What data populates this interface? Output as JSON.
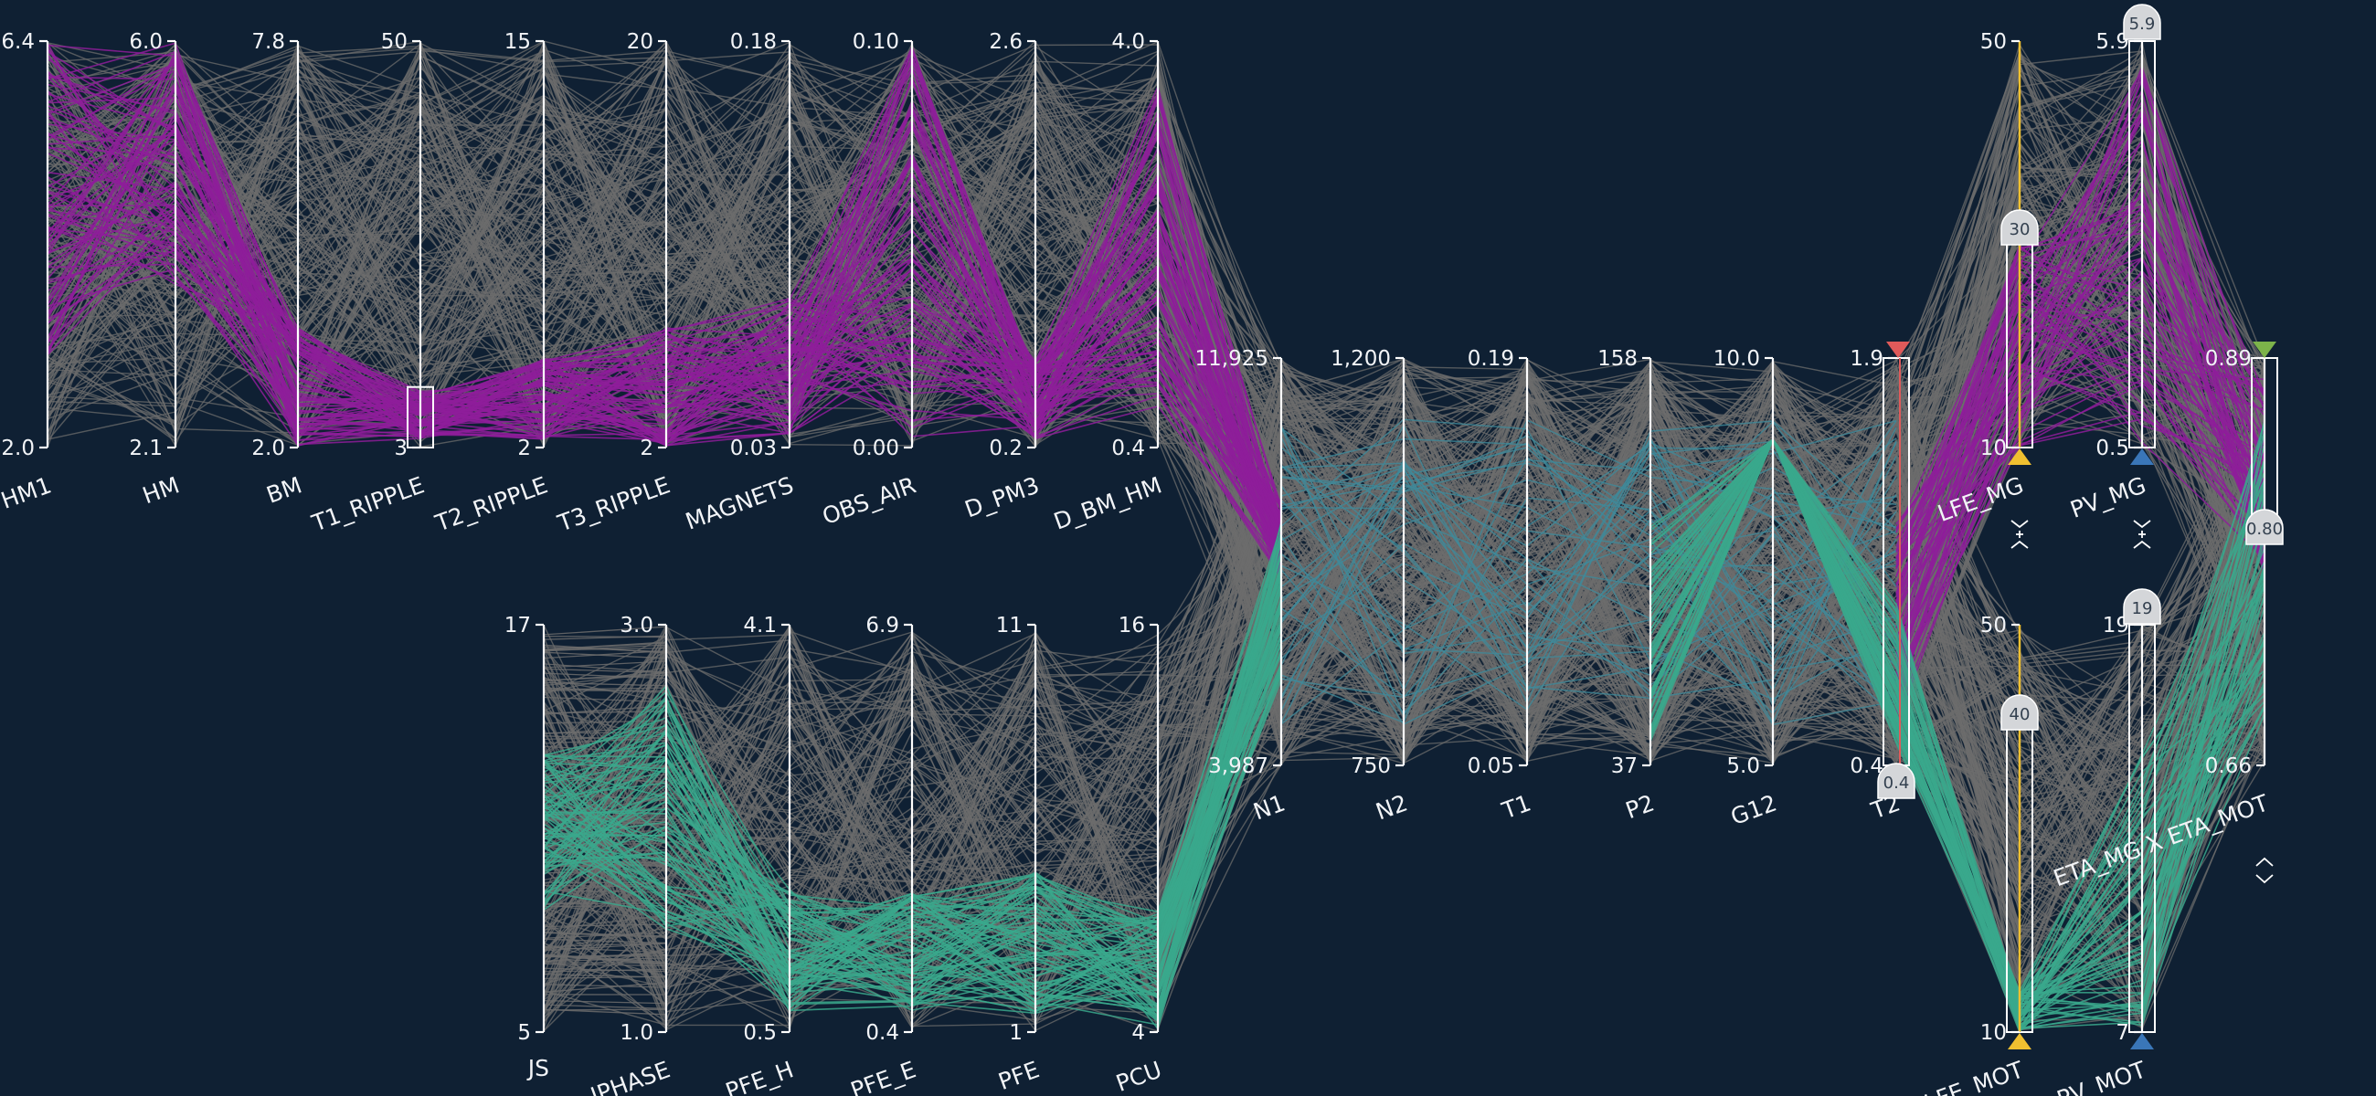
{
  "colors": {
    "background": "#0f2033",
    "context_line": "#6c6c6c",
    "magenta_line": "#8e1d9a",
    "teal_line": "#3aa88c",
    "steel_line": "#3f8a9a",
    "handle_fill": "#d4d6d9",
    "arrow_yellow": "#f0c030",
    "arrow_blue": "#3a76b8",
    "arrow_red": "#e05a5a",
    "arrow_green": "#7cb34a",
    "brush_red": "#e05a5a",
    "brush_olive": "#9fae2e"
  },
  "chart_data": {
    "type": "parallel_coordinates",
    "axes": [
      {
        "id": "hm1",
        "name": "HM1",
        "min": "2.0",
        "max": "6.4"
      },
      {
        "id": "hm",
        "name": "HM",
        "min": "2.1",
        "max": "6.0"
      },
      {
        "id": "bm",
        "name": "BM",
        "min": "2.0",
        "max": "7.8"
      },
      {
        "id": "t1_ripple",
        "name": "T1_RIPPLE",
        "min": "3",
        "max": "50"
      },
      {
        "id": "t2_ripple",
        "name": "T2_RIPPLE",
        "min": "2",
        "max": "15"
      },
      {
        "id": "t3_ripple",
        "name": "T3_RIPPLE",
        "min": "2",
        "max": "20"
      },
      {
        "id": "magnets",
        "name": "MAGNETS",
        "min": "0.03",
        "max": "0.18"
      },
      {
        "id": "obs_air",
        "name": "OBS_AIR",
        "min": "0.00",
        "max": "0.10"
      },
      {
        "id": "d_pm3",
        "name": "D_PM3",
        "min": "0.2",
        "max": "2.6"
      },
      {
        "id": "d_bm_hm",
        "name": "D_BM_HM",
        "min": "0.4",
        "max": "4.0"
      },
      {
        "id": "js",
        "name": "JS",
        "min": "5",
        "max": "17"
      },
      {
        "id": "iphase",
        "name": "IPHASE",
        "min": "1.0",
        "max": "3.0"
      },
      {
        "id": "pfe_h",
        "name": "PFE_H",
        "min": "0.5",
        "max": "4.1"
      },
      {
        "id": "pfe_e",
        "name": "PFE_E",
        "min": "0.4",
        "max": "6.9"
      },
      {
        "id": "pfe",
        "name": "PFE",
        "min": "1",
        "max": "11"
      },
      {
        "id": "pcu",
        "name": "PCU",
        "min": "4",
        "max": "16"
      },
      {
        "id": "n1",
        "name": "N1",
        "min": "3,987",
        "max": "11,925"
      },
      {
        "id": "n2",
        "name": "N2",
        "min": "750",
        "max": "1,200"
      },
      {
        "id": "t1",
        "name": "T1",
        "min": "0.05",
        "max": "0.19"
      },
      {
        "id": "p2",
        "name": "P2",
        "min": "37",
        "max": "158"
      },
      {
        "id": "g12",
        "name": "G12",
        "min": "5.0",
        "max": "10.0"
      },
      {
        "id": "t2",
        "name": "T2",
        "min": "0.4",
        "max": "1.9"
      },
      {
        "id": "lfe_mg",
        "name": "LFE_MG",
        "min": "10",
        "max": "50"
      },
      {
        "id": "pv_mg",
        "name": "PV_MG",
        "min": "0.5",
        "max": "5.9"
      },
      {
        "id": "lfe_mot",
        "name": "LFE_MOT",
        "min": "10",
        "max": "50"
      },
      {
        "id": "pv_mot",
        "name": "PV_MOT",
        "min": "7",
        "max": "19"
      },
      {
        "id": "eta",
        "name": "ETA_MG X ETA_MOT",
        "min": "0.66",
        "max": "0.89"
      }
    ],
    "handles": [
      {
        "axis": "lfe_mg",
        "value": "30"
      },
      {
        "axis": "pv_mg",
        "value": "5.9"
      },
      {
        "axis": "lfe_mot",
        "value": "40"
      },
      {
        "axis": "pv_mot",
        "value": "19"
      },
      {
        "axis": "t2",
        "value": "0.4"
      },
      {
        "axis": "eta",
        "value": "0.80"
      }
    ],
    "brushes": [
      {
        "axis": "t1_ripple",
        "from": 3,
        "to": 10
      },
      {
        "axis": "lfe_mg",
        "from": 10,
        "to": 30
      },
      {
        "axis": "pv_mg",
        "from": 0.5,
        "to": 5.9
      },
      {
        "axis": "lfe_mot",
        "from": 10,
        "to": 40
      },
      {
        "axis": "pv_mot",
        "from": 7,
        "to": 19
      },
      {
        "axis": "t2",
        "from": 0.4,
        "to": 1.9
      }
    ],
    "highlight_groups": [
      {
        "color": "magenta",
        "description_axes": [
          "hm1",
          "hm",
          "bm",
          "t1_ripple",
          "t2_ripple",
          "t3_ripple",
          "magnets",
          "obs_air",
          "d_pm3",
          "d_bm_hm",
          "n1",
          "t2",
          "lfe_mg",
          "pv_mg",
          "eta"
        ]
      },
      {
        "color": "teal",
        "description_axes": [
          "js",
          "iphase",
          "pfe_h",
          "pfe_e",
          "pfe",
          "pcu",
          "n1",
          "n2",
          "t1",
          "p2",
          "g12",
          "t2",
          "lfe_mot",
          "pv_mot",
          "eta"
        ]
      }
    ]
  }
}
